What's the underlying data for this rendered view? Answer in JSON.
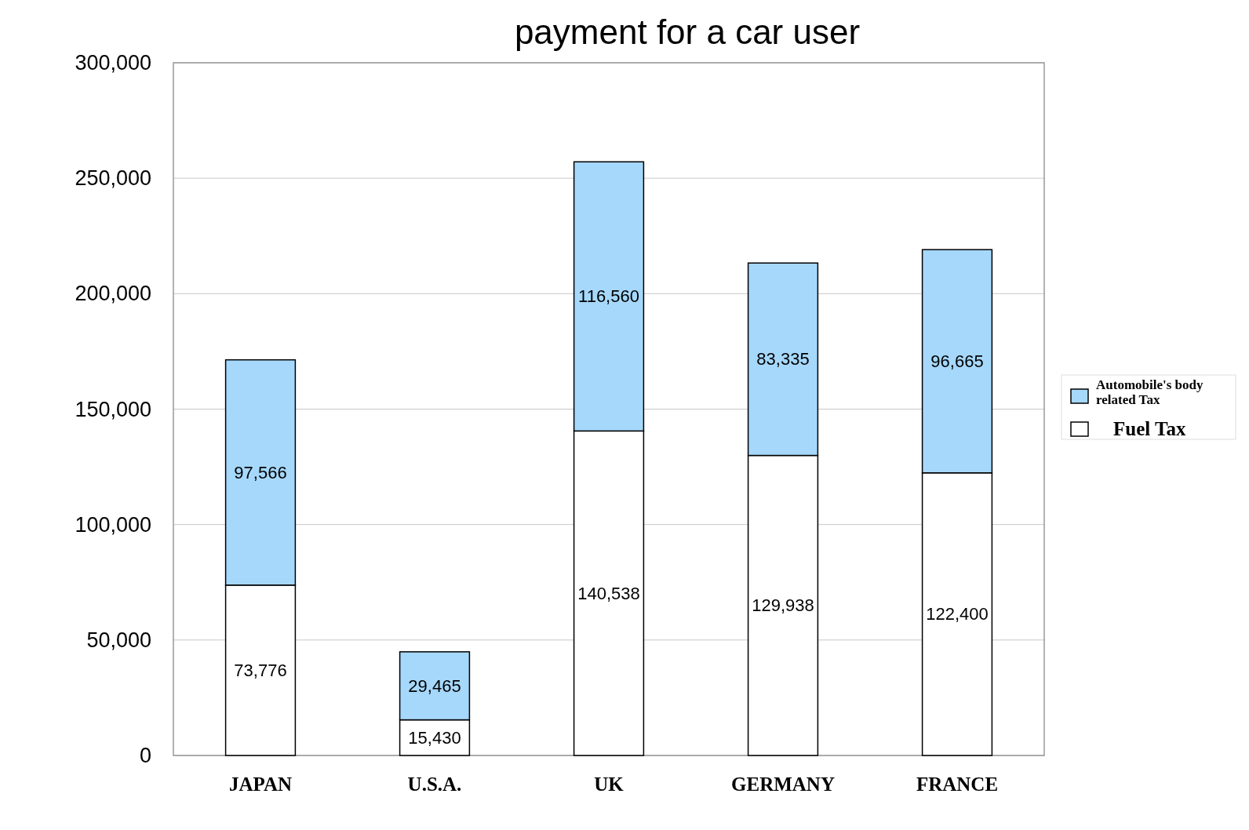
{
  "chart_data": {
    "type": "bar",
    "title": "payment for a car user",
    "categories": [
      "JAPAN",
      "U.S.A.",
      "UK",
      "GERMANY",
      "FRANCE"
    ],
    "stacked": true,
    "series": [
      {
        "name": "Fuel Tax",
        "color": "#ffffff",
        "values": [
          73776,
          15430,
          140538,
          129938,
          122400
        ],
        "value_labels": [
          "73,776",
          "15,430",
          "140,538",
          "129,938",
          "122,400"
        ]
      },
      {
        "name": "Automobile's body related Tax",
        "color": "#a6d8fb",
        "values": [
          97566,
          29465,
          116560,
          83335,
          96665
        ],
        "value_labels": [
          "97,566",
          "29,465",
          "116,560",
          "83,335",
          "96,665"
        ]
      }
    ],
    "ylim": [
      0,
      300000
    ],
    "yticks": [
      0,
      {
        "value": 50000,
        "label": "50,000"
      },
      {
        "value": 100000,
        "label": "100,000"
      },
      {
        "value": 150000,
        "label": "150,000"
      },
      {
        "value": 200000,
        "label": "200,000"
      },
      {
        "value": 250000,
        "label": "250,000"
      },
      {
        "value": 300000,
        "label": "300,000"
      }
    ],
    "grid": "y",
    "legend": "right"
  }
}
